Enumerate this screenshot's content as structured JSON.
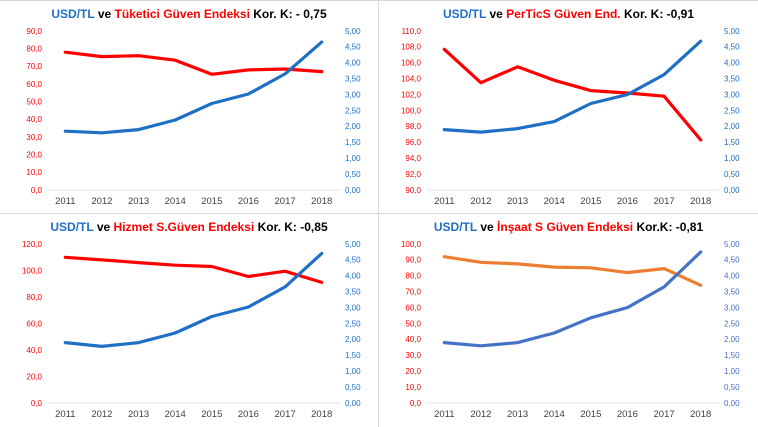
{
  "page": {
    "background": "#ffffff"
  },
  "chart_data": [
    {
      "type": "line",
      "title_parts": {
        "usdtl": "USD/TL",
        "ve": "ve",
        "index": "Tüketici Güven Endeksi",
        "kor": "Kor. K: - 0,75"
      },
      "title_colors": {
        "usdtl": "#1F6FC5",
        "ve": "#000000",
        "index": "#FF0000",
        "kor": "#000000"
      },
      "x": [
        "2011",
        "2012",
        "2013",
        "2014",
        "2015",
        "2016",
        "2017",
        "2018"
      ],
      "left_axis": {
        "min": 0,
        "max": 90,
        "step": 10,
        "decimals": 1,
        "color": "#FF0000"
      },
      "right_axis": {
        "min": 0,
        "max": 5,
        "step": 0.5,
        "decimals": 2,
        "color": "#1F6FC5"
      },
      "grid": false,
      "legend": "none",
      "series": [
        {
          "name": "Tüketici Güven Endeksi",
          "axis": "left",
          "color": "#FF0000",
          "values": [
            78,
            75.5,
            76,
            73.5,
            65.5,
            68,
            68.5,
            67
          ]
        },
        {
          "name": "USD/TL",
          "axis": "right",
          "color": "#1F6FC5",
          "values": [
            1.85,
            1.8,
            1.9,
            2.2,
            2.72,
            3.02,
            3.65,
            4.65
          ]
        }
      ]
    },
    {
      "type": "line",
      "title_parts": {
        "usdtl": "USD/TL",
        "ve": "ve",
        "index": "PerTicS Güven End.",
        "kor": "Kor. K: -0,91"
      },
      "title_colors": {
        "usdtl": "#1F6FC5",
        "ve": "#000000",
        "index": "#FF0000",
        "kor": "#000000"
      },
      "x": [
        "2011",
        "2012",
        "2013",
        "2014",
        "2015",
        "2016",
        "2017",
        "2018"
      ],
      "left_axis": {
        "min": 90,
        "max": 110,
        "step": 2,
        "decimals": 1,
        "color": "#FF0000"
      },
      "right_axis": {
        "min": 0,
        "max": 5,
        "step": 0.5,
        "decimals": 2,
        "color": "#1F6FC5"
      },
      "grid": false,
      "legend": "none",
      "series": [
        {
          "name": "PerTicS Güven End.",
          "axis": "left",
          "color": "#FF0000",
          "values": [
            107.7,
            103.5,
            105.5,
            103.8,
            102.5,
            102.2,
            101.8,
            96.3
          ]
        },
        {
          "name": "USD/TL",
          "axis": "right",
          "color": "#1F6FC5",
          "values": [
            1.9,
            1.82,
            1.93,
            2.15,
            2.72,
            3.0,
            3.63,
            4.68
          ]
        }
      ]
    },
    {
      "type": "line",
      "title_parts": {
        "usdtl": "USD/TL",
        "ve": "ve",
        "index": "Hizmet S.Güven Endeksi",
        "kor": "Kor. K: -0,85"
      },
      "title_colors": {
        "usdtl": "#1F6FC5",
        "ve": "#000000",
        "index": "#FF0000",
        "kor": "#000000"
      },
      "x": [
        "2011",
        "2012",
        "2013",
        "2014",
        "2015",
        "2016",
        "2017",
        "2018"
      ],
      "left_axis": {
        "min": 0,
        "max": 120,
        "step": 20,
        "decimals": 1,
        "color": "#FF0000"
      },
      "right_axis": {
        "min": 0,
        "max": 5,
        "step": 0.5,
        "decimals": 2,
        "color": "#1F6FC5"
      },
      "grid": false,
      "legend": "none",
      "series": [
        {
          "name": "Hizmet S.Güven Endeksi",
          "axis": "left",
          "color": "#FF0000",
          "values": [
            110,
            108,
            106,
            104,
            103,
            95.5,
            99.5,
            91
          ]
        },
        {
          "name": "USD/TL",
          "axis": "right",
          "color": "#1F6FC5",
          "values": [
            1.9,
            1.78,
            1.9,
            2.2,
            2.72,
            3.02,
            3.65,
            4.7
          ]
        }
      ]
    },
    {
      "type": "line",
      "title_parts": {
        "usdtl": "USD/TL",
        "ve": "ve",
        "index": "İnşaat S Güven Endeksi",
        "kor": "Kor.K: -0,81"
      },
      "title_colors": {
        "usdtl": "#1F6FC5",
        "ve": "#000000",
        "index": "#FF0000",
        "kor": "#000000"
      },
      "x": [
        "2011",
        "2012",
        "2013",
        "2014",
        "2015",
        "2016",
        "2017",
        "2018"
      ],
      "left_axis": {
        "min": 0,
        "max": 100,
        "step": 10,
        "decimals": 1,
        "color": "#FF0000"
      },
      "right_axis": {
        "min": 0,
        "max": 5,
        "step": 0.5,
        "decimals": 2,
        "color": "#4472C4"
      },
      "grid": false,
      "legend": "none",
      "series": [
        {
          "name": "İnşaat S Güven Endeksi",
          "axis": "left",
          "color": "#ED7D31",
          "values": [
            92,
            88.5,
            87.5,
            85.5,
            85,
            82,
            84.5,
            74
          ]
        },
        {
          "name": "USD/TL",
          "axis": "right",
          "color": "#4472C4",
          "values": [
            1.9,
            1.8,
            1.9,
            2.2,
            2.68,
            3.0,
            3.65,
            4.75
          ]
        }
      ]
    }
  ]
}
